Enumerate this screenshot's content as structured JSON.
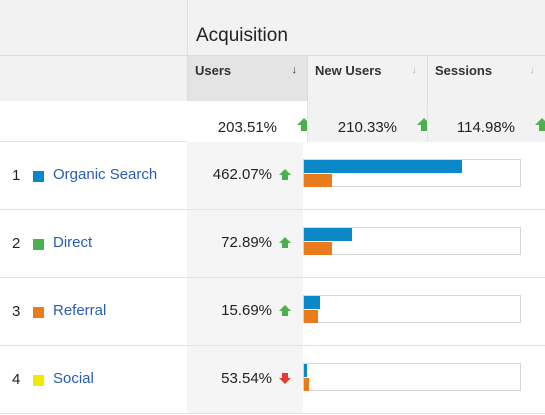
{
  "header": {
    "group_title": "Acquisition",
    "columns": [
      {
        "label": "Users",
        "sort_icon": "↓",
        "active": true
      },
      {
        "label": "New Users",
        "sort_icon": "↓",
        "active": false
      },
      {
        "label": "Sessions",
        "sort_icon": "↓",
        "active": false
      }
    ]
  },
  "totals": {
    "users": "203.51%",
    "new_users": "210.33%",
    "sessions": "114.98%"
  },
  "rows": [
    {
      "num": "1",
      "label": "Organic Search",
      "swatch": "#0a88c8",
      "users": "462.07%",
      "trend": "up",
      "bar_primary": 0.73,
      "bar_secondary": 0.13
    },
    {
      "num": "2",
      "label": "Direct",
      "swatch": "#4caf50",
      "users": "72.89%",
      "trend": "up",
      "bar_primary": 0.22,
      "bar_secondary": 0.13
    },
    {
      "num": "3",
      "label": "Referral",
      "swatch": "#ea7b1c",
      "users": "15.69%",
      "trend": "up",
      "bar_primary": 0.075,
      "bar_secondary": 0.065
    },
    {
      "num": "4",
      "label": "Social",
      "swatch": "#f0ea00",
      "users": "53.54%",
      "trend": "down",
      "bar_primary": 0.015,
      "bar_secondary": 0.025
    }
  ],
  "colors": {
    "bar_primary": "#0a88c8",
    "bar_secondary": "#ea7b1c",
    "up": "#4caf50",
    "down": "#e53935",
    "link": "#2a5db0"
  }
}
